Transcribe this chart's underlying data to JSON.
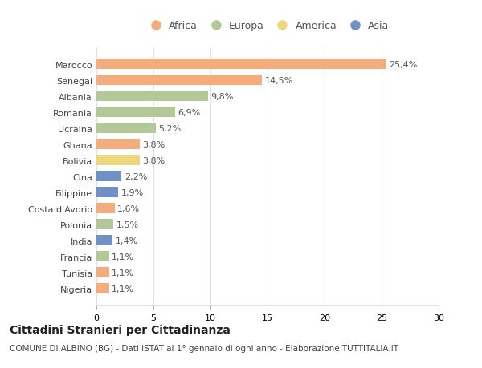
{
  "countries": [
    "Marocco",
    "Senegal",
    "Albania",
    "Romania",
    "Ucraina",
    "Ghana",
    "Bolivia",
    "Cina",
    "Filippine",
    "Costa d'Avorio",
    "Polonia",
    "India",
    "Francia",
    "Tunisia",
    "Nigeria"
  ],
  "values": [
    25.4,
    14.5,
    9.8,
    6.9,
    5.2,
    3.8,
    3.8,
    2.2,
    1.9,
    1.6,
    1.5,
    1.4,
    1.1,
    1.1,
    1.1
  ],
  "labels": [
    "25,4%",
    "14,5%",
    "9,8%",
    "6,9%",
    "5,2%",
    "3,8%",
    "3,8%",
    "2,2%",
    "1,9%",
    "1,6%",
    "1,5%",
    "1,4%",
    "1,1%",
    "1,1%",
    "1,1%"
  ],
  "continents": [
    "Africa",
    "Africa",
    "Europa",
    "Europa",
    "Europa",
    "Africa",
    "America",
    "Asia",
    "Asia",
    "Africa",
    "Europa",
    "Asia",
    "Europa",
    "Africa",
    "Africa"
  ],
  "colors": {
    "Africa": "#F2AC7E",
    "Europa": "#B2C899",
    "America": "#EDD882",
    "Asia": "#7090C8"
  },
  "legend_order": [
    "Africa",
    "Europa",
    "America",
    "Asia"
  ],
  "title": "Cittadini Stranieri per Cittadinanza",
  "subtitle": "COMUNE DI ALBINO (BG) - Dati ISTAT al 1° gennaio di ogni anno - Elaborazione TUTTITALIA.IT",
  "xlim": [
    0,
    30
  ],
  "xticks": [
    0,
    5,
    10,
    15,
    20,
    25,
    30
  ],
  "bg_color": "#ffffff",
  "grid_color": "#e0e0e0",
  "title_fontsize": 10,
  "subtitle_fontsize": 7.5,
  "label_fontsize": 8,
  "tick_fontsize": 8,
  "legend_fontsize": 9,
  "bar_height": 0.65
}
